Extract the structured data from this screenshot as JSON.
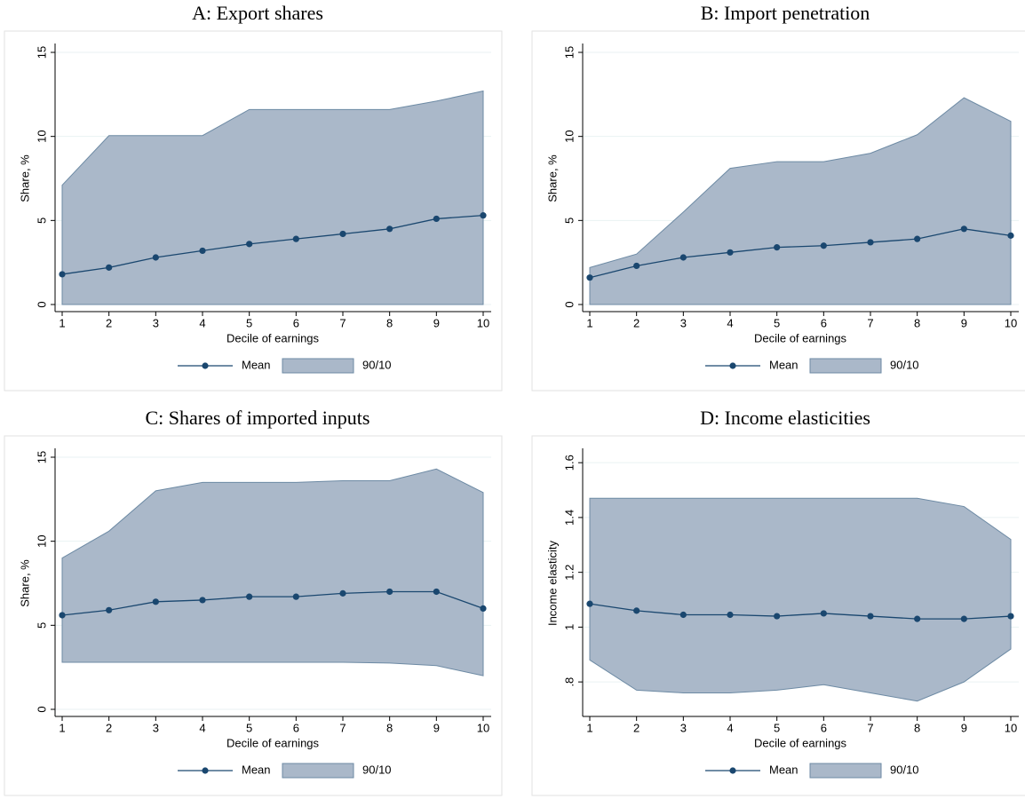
{
  "chart_data": [
    {
      "type": "line",
      "title": "A: Export shares",
      "x_label": "Decile of earnings",
      "y_label": "Share, %",
      "x": [
        1,
        2,
        3,
        4,
        5,
        6,
        7,
        8,
        9,
        10
      ],
      "xlim": [
        1,
        10
      ],
      "xticks": [
        1,
        2,
        3,
        4,
        5,
        6,
        7,
        8,
        9,
        10
      ],
      "ylim": [
        0,
        15
      ],
      "yticks": [
        0,
        5,
        10,
        15
      ],
      "grid": true,
      "series": [
        {
          "name": "Mean",
          "color": "#1a476f",
          "values": [
            1.8,
            2.2,
            2.8,
            3.2,
            3.6,
            3.9,
            4.2,
            4.5,
            5.1,
            5.3
          ]
        },
        {
          "name": "90/10",
          "color": "#aab8c9",
          "type": "band",
          "lower": [
            0,
            0,
            0,
            0,
            0,
            0,
            0,
            0,
            0,
            0
          ],
          "upper": [
            7.1,
            10.05,
            10.05,
            10.05,
            11.6,
            11.6,
            11.6,
            11.6,
            12.1,
            12.7
          ]
        }
      ]
    },
    {
      "type": "line",
      "title": "B: Import penetration",
      "x_label": "Decile of earnings",
      "y_label": "Share, %",
      "x": [
        1,
        2,
        3,
        4,
        5,
        6,
        7,
        8,
        9,
        10
      ],
      "xlim": [
        1,
        10
      ],
      "xticks": [
        1,
        2,
        3,
        4,
        5,
        6,
        7,
        8,
        9,
        10
      ],
      "ylim": [
        0,
        15
      ],
      "yticks": [
        0,
        5,
        10,
        15
      ],
      "grid": true,
      "series": [
        {
          "name": "Mean",
          "color": "#1a476f",
          "values": [
            1.6,
            2.3,
            2.8,
            3.1,
            3.4,
            3.5,
            3.7,
            3.9,
            4.5,
            4.1
          ]
        },
        {
          "name": "90/10",
          "color": "#aab8c9",
          "type": "band",
          "lower": [
            0,
            0,
            0,
            0,
            0,
            0,
            0,
            0,
            0,
            0
          ],
          "upper": [
            2.2,
            3.0,
            5.5,
            8.1,
            8.5,
            8.5,
            9.0,
            10.1,
            12.3,
            10.9
          ]
        }
      ]
    },
    {
      "type": "line",
      "title": "C: Shares of imported inputs",
      "x_label": "Decile of earnings",
      "y_label": "Share, %",
      "x": [
        1,
        2,
        3,
        4,
        5,
        6,
        7,
        8,
        9,
        10
      ],
      "xlim": [
        1,
        10
      ],
      "xticks": [
        1,
        2,
        3,
        4,
        5,
        6,
        7,
        8,
        9,
        10
      ],
      "ylim": [
        0,
        15
      ],
      "yticks": [
        0,
        5,
        10,
        15
      ],
      "grid": true,
      "series": [
        {
          "name": "Mean",
          "color": "#1a476f",
          "values": [
            5.6,
            5.9,
            6.4,
            6.5,
            6.7,
            6.7,
            6.9,
            7.0,
            7.0,
            6.0
          ]
        },
        {
          "name": "90/10",
          "color": "#aab8c9",
          "type": "band",
          "lower": [
            2.8,
            2.8,
            2.8,
            2.8,
            2.8,
            2.8,
            2.8,
            2.75,
            2.6,
            2.0
          ],
          "upper": [
            9.0,
            10.6,
            13.0,
            13.5,
            13.5,
            13.5,
            13.6,
            13.6,
            14.3,
            12.9
          ]
        }
      ]
    },
    {
      "type": "line",
      "title": "D: Income elasticities",
      "x_label": "Decile of earnings",
      "y_label": "Income elasticity",
      "x": [
        1,
        2,
        3,
        4,
        5,
        6,
        7,
        8,
        9,
        10
      ],
      "xlim": [
        1,
        10
      ],
      "xticks": [
        1,
        2,
        3,
        4,
        5,
        6,
        7,
        8,
        9,
        10
      ],
      "ylim": [
        0.7,
        1.62
      ],
      "yticks": [
        {
          "value": 0.8,
          "label": ".8"
        },
        1,
        1.2,
        1.4,
        1.6
      ],
      "grid": true,
      "series": [
        {
          "name": "Mean",
          "color": "#1a476f",
          "values": [
            1.085,
            1.06,
            1.045,
            1.045,
            1.04,
            1.05,
            1.04,
            1.03,
            1.03,
            1.04
          ]
        },
        {
          "name": "90/10",
          "color": "#aab8c9",
          "type": "band",
          "lower": [
            0.88,
            0.77,
            0.76,
            0.76,
            0.77,
            0.79,
            0.76,
            0.73,
            0.8,
            0.92
          ],
          "upper": [
            1.47,
            1.47,
            1.47,
            1.47,
            1.47,
            1.47,
            1.47,
            1.47,
            1.44,
            1.32
          ]
        }
      ]
    }
  ]
}
